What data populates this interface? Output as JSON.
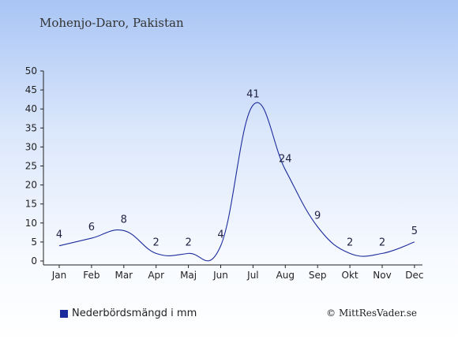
{
  "chart_data": {
    "type": "line",
    "title": "Mohenjo-Daro, Pakistan",
    "categories": [
      "Jan",
      "Feb",
      "Mar",
      "Apr",
      "Maj",
      "Jun",
      "Jul",
      "Aug",
      "Sep",
      "Okt",
      "Nov",
      "Dec"
    ],
    "series": [
      {
        "name": "Nederbördsmängd i mm",
        "values": [
          4,
          6,
          8,
          2,
          2,
          4,
          41,
          24,
          9,
          2,
          2,
          5
        ]
      }
    ],
    "ylim": [
      0,
      50
    ],
    "yticks": [
      0,
      5,
      10,
      15,
      20,
      25,
      30,
      35,
      40,
      45,
      50
    ],
    "grid": false,
    "legend": "bottom-left",
    "line_color": "#1c2c9c"
  },
  "credit": "© MittResVader.se"
}
